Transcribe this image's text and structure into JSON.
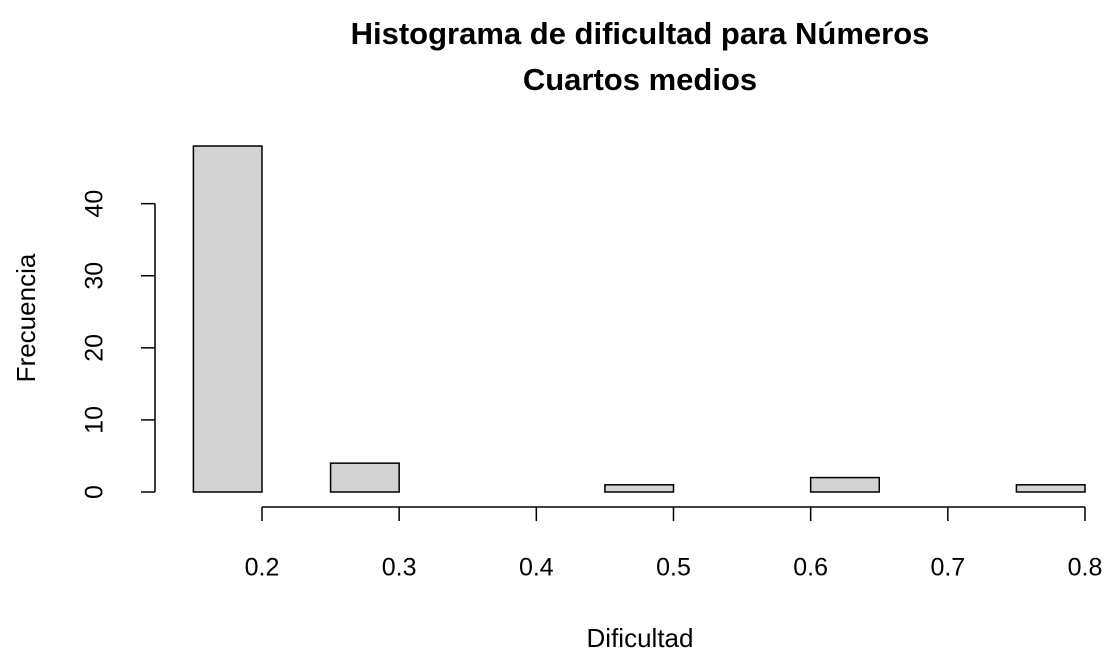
{
  "chart_data": {
    "type": "histogram",
    "title": [
      "Histograma de dificultad para Números",
      "Cuartos medios"
    ],
    "xlabel": "Dificultad",
    "ylabel": "Frecuencia",
    "bins": [
      0.15,
      0.2,
      0.25,
      0.3,
      0.35,
      0.4,
      0.45,
      0.5,
      0.55,
      0.6,
      0.65,
      0.7,
      0.75,
      0.8
    ],
    "values": [
      48,
      0,
      4,
      0,
      0,
      0,
      1,
      0,
      0,
      2,
      0,
      0,
      1
    ],
    "color": "#d3d3d3",
    "xlim": [
      0.15,
      0.8
    ],
    "xticks": [
      0.2,
      0.3,
      0.4,
      0.5,
      0.6,
      0.7,
      0.8
    ],
    "ylim": [
      0,
      48
    ],
    "yticks": [
      0,
      10,
      20,
      30,
      40
    ]
  }
}
